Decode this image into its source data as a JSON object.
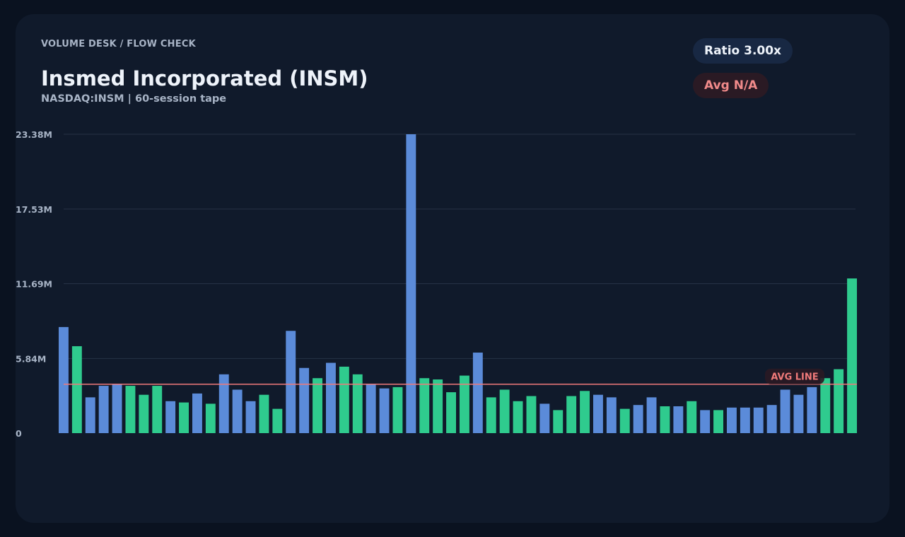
{
  "header": {
    "eyebrow": "VOLUME DESK / FLOW CHECK",
    "title": "Insmed Incorporated (INSM)",
    "subtitle": "NASDAQ:INSM | 60-session tape"
  },
  "badges": {
    "ratio": "Ratio 3.00x",
    "avg": "Avg N/A"
  },
  "colors": {
    "down_bar": "#5b8bd9",
    "up_bar": "#2fcb8e",
    "avg_line": "#f07a7a",
    "grid": "#263346"
  },
  "chart_data": {
    "type": "bar",
    "title": "",
    "xlabel": "",
    "ylabel": "",
    "ylim": [
      0,
      23.38
    ],
    "y_unit": "M",
    "y_ticks": [
      "0",
      "5.84M",
      "11.69M",
      "17.53M",
      "23.38M"
    ],
    "y_tick_values": [
      0,
      5.84,
      11.69,
      17.53,
      23.38
    ],
    "grid": true,
    "avg_line": {
      "label": "AVG LINE",
      "value": 3.83
    },
    "series": [
      {
        "values": [
          8.3,
          6.8,
          2.8,
          3.7,
          3.8,
          3.7,
          3.0,
          3.7,
          2.5,
          2.4,
          3.1,
          2.3,
          4.6,
          3.4,
          2.5,
          3.0,
          1.9,
          8.0,
          5.1,
          4.3,
          5.5,
          5.2,
          4.6,
          3.8,
          3.5,
          3.6,
          23.38,
          4.3,
          4.2,
          3.2,
          4.5,
          6.3,
          2.8,
          3.4,
          2.5,
          2.9,
          2.3,
          1.8,
          2.9,
          3.3,
          3.0,
          2.8,
          1.9,
          2.2,
          2.8,
          2.1,
          2.1,
          2.5,
          1.8,
          1.8,
          2.0,
          2.0,
          2.0,
          2.2,
          3.4,
          3.0,
          3.6,
          4.3,
          5.0,
          12.1
        ],
        "direction": [
          "down",
          "up",
          "down",
          "down",
          "down",
          "up",
          "up",
          "up",
          "down",
          "up",
          "down",
          "up",
          "down",
          "down",
          "down",
          "up",
          "up",
          "down",
          "down",
          "up",
          "down",
          "up",
          "up",
          "down",
          "down",
          "up",
          "down",
          "up",
          "up",
          "up",
          "up",
          "down",
          "up",
          "up",
          "up",
          "up",
          "down",
          "up",
          "up",
          "up",
          "down",
          "down",
          "up",
          "down",
          "down",
          "up",
          "down",
          "up",
          "down",
          "up",
          "down",
          "down",
          "down",
          "down",
          "down",
          "down",
          "down",
          "up",
          "up",
          "up"
        ]
      }
    ]
  }
}
